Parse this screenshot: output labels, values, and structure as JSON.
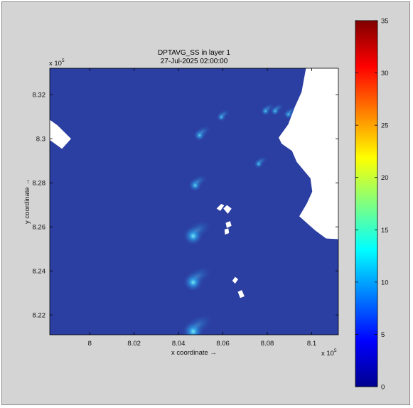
{
  "chart_data": {
    "type": "heatmap",
    "title": "DPTAVG_SS in layer 1",
    "subtitle": "27-Jul-2025 02:00:00",
    "xlabel": "x coordinate →",
    "ylabel": "y coordinate →",
    "x_exponent": "x 10",
    "x_exponent_power": "5",
    "y_exponent": "x 10",
    "y_exponent_power": "5",
    "xlim": [
      7.982,
      8.112
    ],
    "ylim": [
      8.211,
      8.332
    ],
    "x_ticks": [
      8.0,
      8.02,
      8.04,
      8.06,
      8.08,
      8.1
    ],
    "x_tick_labels": [
      "8",
      "8.02",
      "8.04",
      "8.06",
      "8.08",
      "8.1"
    ],
    "y_ticks": [
      8.22,
      8.24,
      8.26,
      8.28,
      8.3,
      8.32
    ],
    "y_tick_labels": [
      "8.22",
      "8.24",
      "8.26",
      "8.28",
      "8.3",
      "8.32"
    ],
    "colorbar": {
      "min": 0,
      "max": 35,
      "ticks": [
        0,
        5,
        10,
        15,
        20,
        25,
        30,
        35
      ],
      "tick_labels": [
        "0",
        "5",
        "10",
        "15",
        "20",
        "25",
        "30",
        "35"
      ],
      "colormap": "jet"
    },
    "background_value": 1,
    "hotspots": [
      {
        "x": 8.0466,
        "y": 8.2125,
        "value": 12
      },
      {
        "x": 8.0466,
        "y": 8.2348,
        "value": 11
      },
      {
        "x": 8.0466,
        "y": 8.2558,
        "value": 11
      },
      {
        "x": 8.0475,
        "y": 8.2788,
        "value": 6
      },
      {
        "x": 8.0495,
        "y": 8.3015,
        "value": 5
      },
      {
        "x": 8.0593,
        "y": 8.3098,
        "value": 3
      },
      {
        "x": 8.0792,
        "y": 8.3125,
        "value": 3
      },
      {
        "x": 8.0835,
        "y": 8.3125,
        "value": 3
      },
      {
        "x": 8.0895,
        "y": 8.311,
        "value": 3
      },
      {
        "x": 8.0761,
        "y": 8.2885,
        "value": 3
      }
    ],
    "land_polygons": [
      [
        [
          7.982,
          8.3085
        ],
        [
          7.9855,
          8.306
        ],
        [
          7.9915,
          8.3
        ],
        [
          7.9875,
          8.2955
        ],
        [
          7.982,
          8.2995
        ]
      ],
      [
        [
          8.0975,
          8.332
        ],
        [
          8.112,
          8.332
        ],
        [
          8.112,
          8.2545
        ],
        [
          8.1065,
          8.2548
        ],
        [
          8.1015,
          8.2585
        ],
        [
          8.0945,
          8.2648
        ],
        [
          8.0978,
          8.2705
        ],
        [
          8.1003,
          8.276
        ],
        [
          8.0995,
          8.282
        ],
        [
          8.0933,
          8.2895
        ],
        [
          8.0912,
          8.2945
        ],
        [
          8.0865,
          8.2978
        ],
        [
          8.0852,
          8.3005
        ],
        [
          8.0895,
          8.3065
        ],
        [
          8.0925,
          8.3145
        ],
        [
          8.0955,
          8.3212
        ]
      ],
      [
        [
          8.0572,
          8.2683
        ],
        [
          8.0592,
          8.2703
        ],
        [
          8.0605,
          8.2698
        ],
        [
          8.0588,
          8.2673
        ]
      ],
      [
        [
          8.0603,
          8.2683
        ],
        [
          8.0618,
          8.2698
        ],
        [
          8.0638,
          8.2683
        ],
        [
          8.0622,
          8.266
        ]
      ],
      [
        [
          8.0613,
          8.2618
        ],
        [
          8.0632,
          8.2625
        ],
        [
          8.0638,
          8.2605
        ],
        [
          8.0618,
          8.2596
        ]
      ],
      [
        [
          8.0608,
          8.2588
        ],
        [
          8.0624,
          8.2592
        ],
        [
          8.0627,
          8.2572
        ],
        [
          8.061,
          8.2566
        ]
      ],
      [
        [
          8.0643,
          8.2355
        ],
        [
          8.0655,
          8.2372
        ],
        [
          8.0668,
          8.2362
        ],
        [
          8.0655,
          8.2343
        ]
      ],
      [
        [
          8.0668,
          8.2305
        ],
        [
          8.0685,
          8.2312
        ],
        [
          8.0696,
          8.2285
        ],
        [
          8.0678,
          8.2278
        ]
      ]
    ]
  }
}
